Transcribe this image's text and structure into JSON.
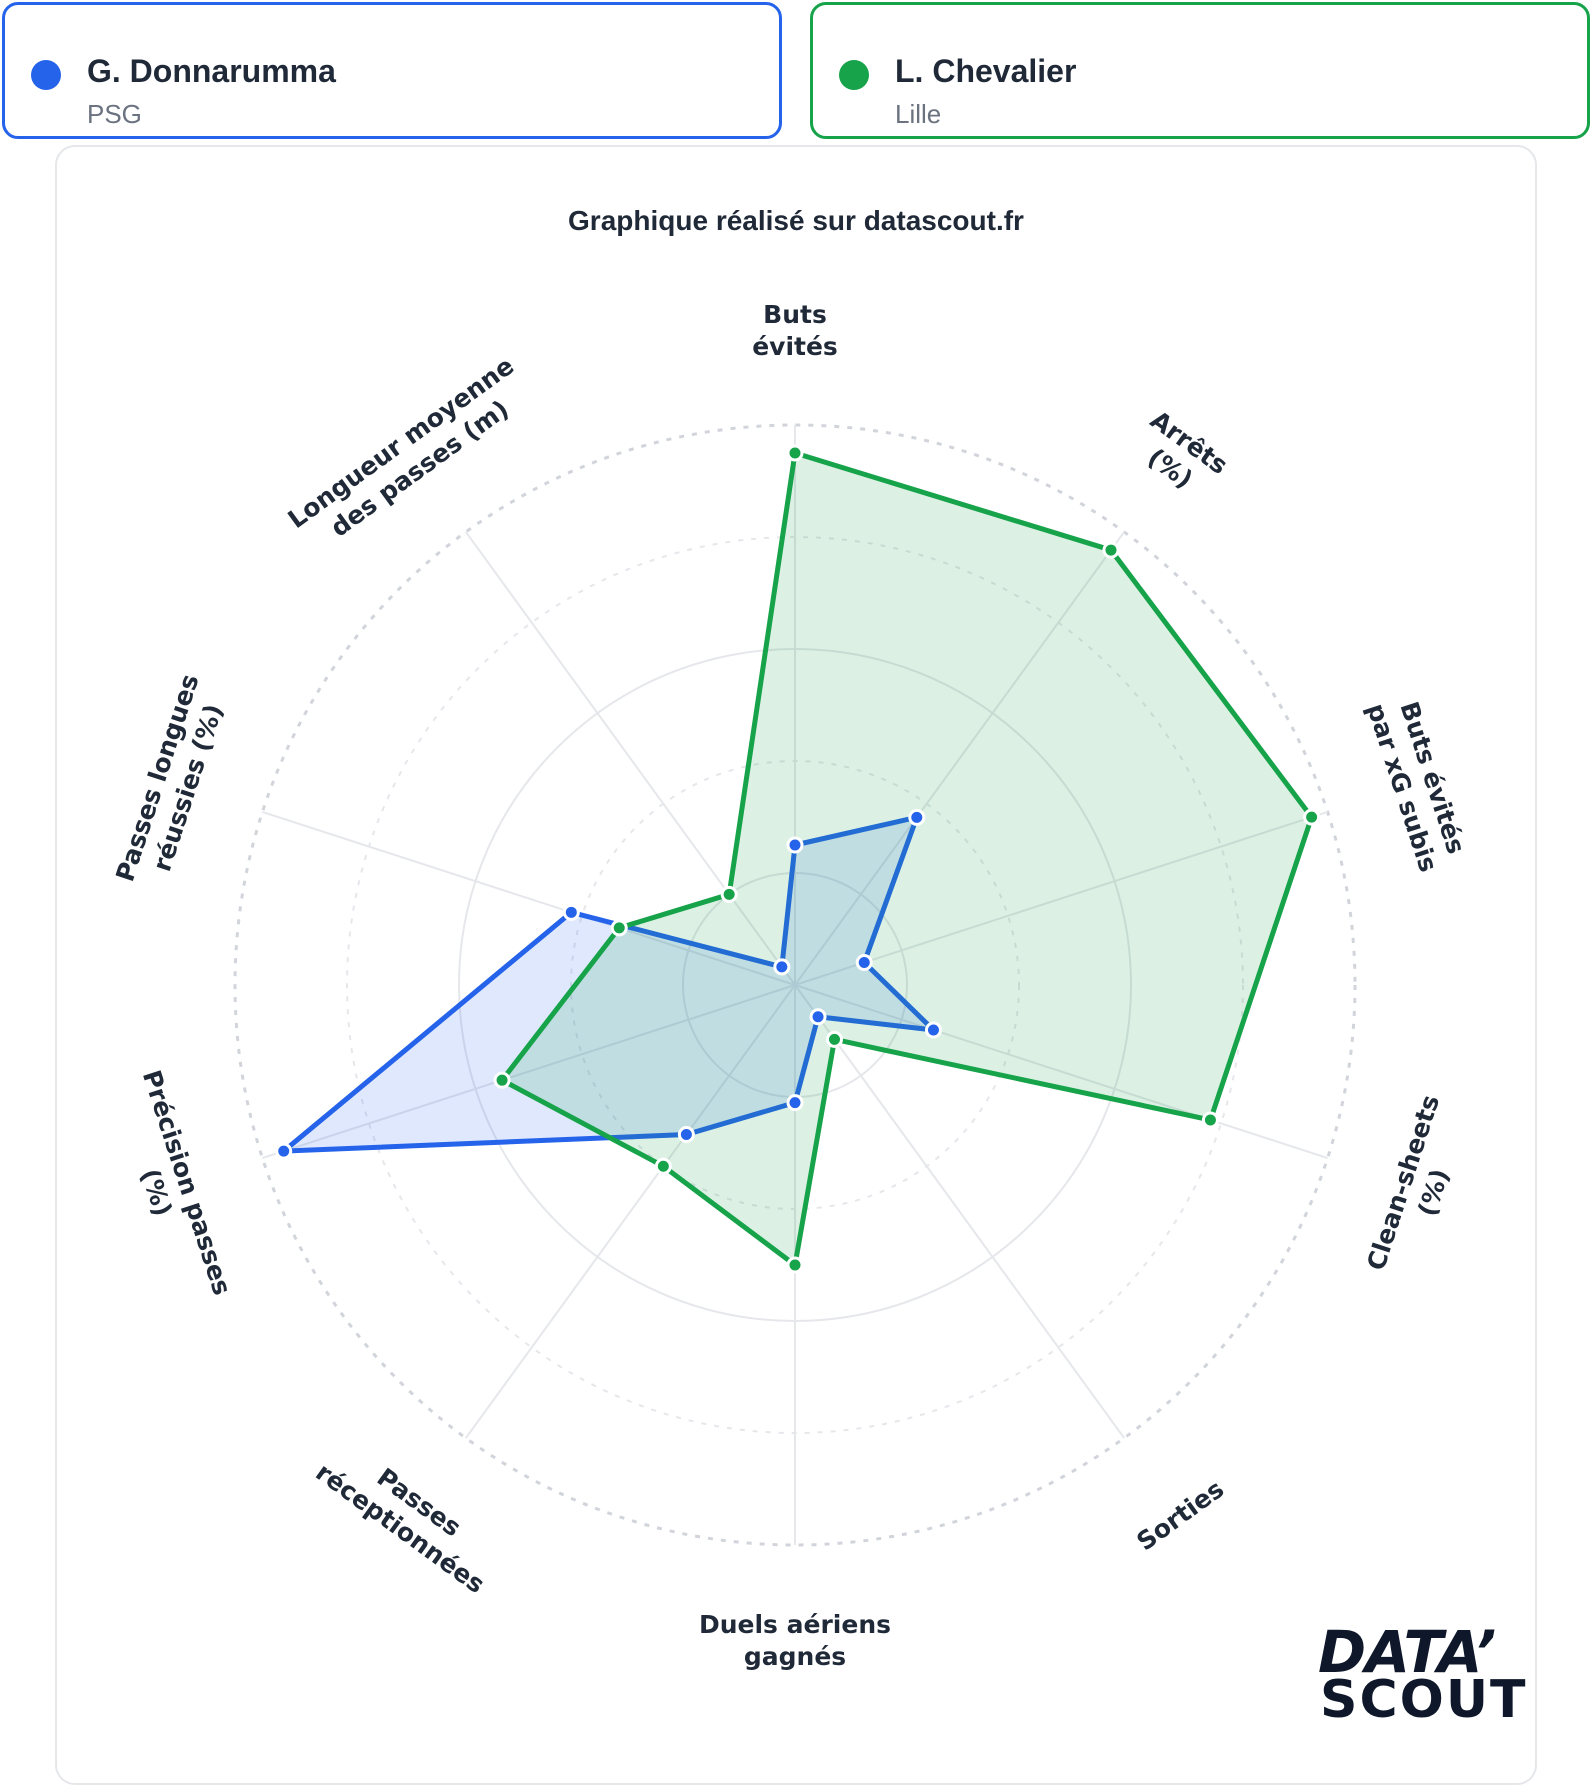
{
  "players": [
    {
      "name": "G. Donnarumma",
      "club": "PSG",
      "color": "#2563eb"
    },
    {
      "name": "L. Chevalier",
      "club": "Lille",
      "color": "#16a34a"
    }
  ],
  "chart_title": "Graphique réalisé sur datascout.fr",
  "logo": {
    "line1": "DATA’",
    "line2": "SCOUT"
  },
  "chart_data": {
    "type": "radar",
    "title": "Graphique réalisé sur datascout.fr",
    "range": [
      0,
      100
    ],
    "grid_levels": [
      20,
      40,
      60,
      80,
      100
    ],
    "axes": [
      {
        "label": [
          "Buts",
          "évités"
        ]
      },
      {
        "label": [
          "Arrêts",
          "(%)"
        ]
      },
      {
        "label": [
          "Buts évités",
          "par xG subis"
        ]
      },
      {
        "label": [
          "Clean-sheets",
          "(%)"
        ]
      },
      {
        "label": [
          "Sorties"
        ]
      },
      {
        "label": [
          "Duels aériens",
          "gagnés"
        ]
      },
      {
        "label": [
          "Passes",
          "réceptionnées"
        ]
      },
      {
        "label": [
          "Précision passes",
          "(%)"
        ]
      },
      {
        "label": [
          "Passes longues",
          "réussies (%)"
        ]
      },
      {
        "label": [
          "Longueur moyenne",
          "des passes (m)"
        ]
      }
    ],
    "series": [
      {
        "name": "G. Donnarumma",
        "color": "#2563eb",
        "fill": "rgba(37,99,235,0.15)",
        "values": [
          25,
          37,
          13,
          26,
          7,
          21,
          33,
          96,
          42,
          4
        ]
      },
      {
        "name": "L. Chevalier",
        "color": "#16a34a",
        "fill": "rgba(22,163,74,0.15)",
        "values": [
          95,
          96,
          97,
          78,
          12,
          50,
          40,
          55,
          33,
          20
        ]
      }
    ]
  }
}
